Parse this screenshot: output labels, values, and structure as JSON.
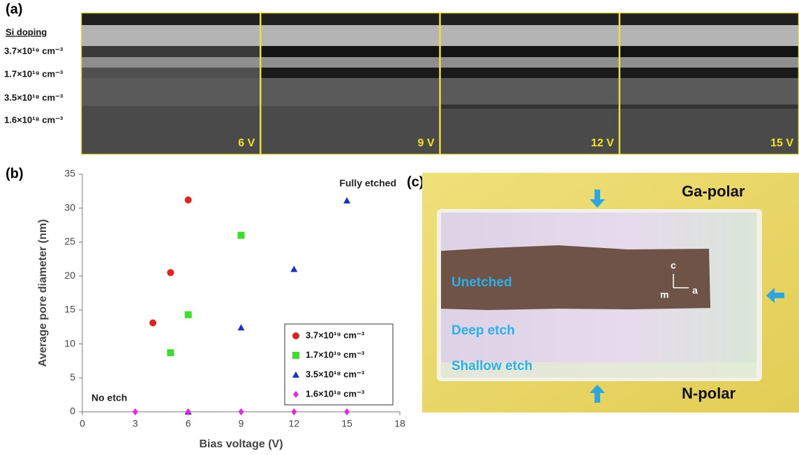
{
  "panel_a": {
    "label": "(a)",
    "heading": "Si doping",
    "doping_levels": [
      "3.7×10¹⁹ cm⁻³",
      "1.7×10¹⁹ cm⁻³",
      "3.5×10¹⁸ cm⁻³",
      "1.6×10¹⁸ cm⁻³"
    ],
    "voltages": [
      "6 V",
      "9 V",
      "12 V",
      "15 V"
    ]
  },
  "panel_c": {
    "label": "(c)",
    "top": "Ga-polar",
    "bottom": "N-polar",
    "unetched": "Unetched",
    "deep": "Deep etch",
    "shallow": "Shallow etch",
    "axis_c": "c",
    "axis_m": "m",
    "axis_a": "a"
  },
  "chart_data": {
    "type": "scatter",
    "panel_label": "(b)",
    "xlabel": "Bias voltage (V)",
    "ylabel": "Average pore diameter (nm)",
    "xlim": [
      0,
      18
    ],
    "xticks": [
      0,
      3,
      6,
      9,
      12,
      15,
      18
    ],
    "ylim": [
      0,
      35
    ],
    "yticks": [
      0,
      5,
      10,
      15,
      20,
      25,
      30,
      35
    ],
    "grid": false,
    "legend": "lower right",
    "annotations": [
      "No etch",
      "Fully etched"
    ],
    "series": [
      {
        "name": "3.7×10¹⁹ cm⁻³",
        "color": "#e8201c",
        "marker": "circle",
        "x": [
          4,
          5,
          6
        ],
        "values": [
          13.1,
          20.5,
          31.2
        ]
      },
      {
        "name": "1.7×10¹⁹ cm⁻³",
        "color": "#39e02a",
        "marker": "square",
        "x": [
          5,
          6,
          9
        ],
        "values": [
          8.7,
          14.3,
          26
        ]
      },
      {
        "name": "3.5×10¹⁸ cm⁻³",
        "color": "#1a2fd0",
        "marker": "triangle",
        "x": [
          6,
          9,
          12,
          15
        ],
        "values": [
          0,
          12.4,
          21,
          31.1
        ]
      },
      {
        "name": "1.6×10¹⁸ cm⁻³",
        "color": "#ee22e6",
        "marker": "diamond",
        "x": [
          3,
          6,
          9,
          12,
          15
        ],
        "values": [
          0,
          0,
          0,
          0,
          0
        ]
      }
    ]
  }
}
